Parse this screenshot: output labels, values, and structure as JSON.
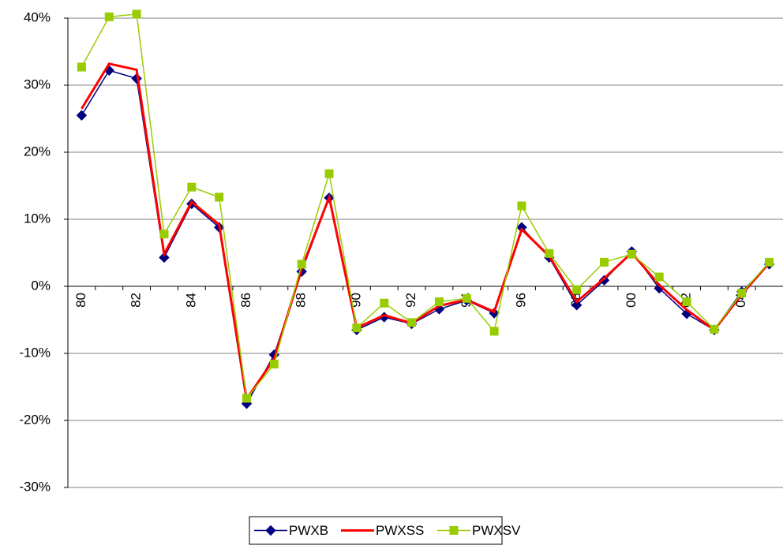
{
  "chart_data": {
    "type": "line",
    "categories": [
      "80",
      null,
      "82",
      null,
      "84",
      null,
      "86",
      null,
      "88",
      null,
      "90",
      null,
      "92",
      null,
      "94",
      null,
      "96",
      null,
      "98",
      null,
      "00",
      null,
      "02",
      null,
      "04",
      null
    ],
    "series": [
      {
        "name": "PWXB",
        "color": "#000080",
        "marker": "diamond",
        "line_width": 1.5,
        "values": [
          25.5,
          32.2,
          31,
          4.3,
          12.3,
          8.8,
          -17.5,
          -10.2,
          2.2,
          13.2,
          -6.5,
          -4.6,
          -5.6,
          -3.4,
          -2.1,
          -4,
          8.8,
          4.3,
          -2.8,
          0.9,
          5.2,
          -0.3,
          -4.1,
          -6.5,
          -0.8,
          3.3
        ]
      },
      {
        "name": "PWXSS",
        "color": "#ff0000",
        "marker": "none",
        "line_width": 3,
        "values": [
          26.5,
          33.2,
          32.3,
          4.8,
          12.6,
          9.2,
          -16.8,
          -10.8,
          2.6,
          13.3,
          -6.2,
          -4.3,
          -5.5,
          -2.9,
          -2,
          -3.8,
          8.5,
          4.5,
          -2.3,
          1.2,
          5,
          0.2,
          -3.5,
          -6.5,
          -1.2,
          3.5
        ]
      },
      {
        "name": "PWXSV",
        "color": "#99cc00",
        "marker": "square",
        "line_width": 1.5,
        "values": [
          32.7,
          40.2,
          40.6,
          7.8,
          14.8,
          13.3,
          -16.7,
          -11.6,
          3.3,
          16.8,
          -6.2,
          -2.5,
          -5.4,
          -2.3,
          -1.8,
          -6.7,
          12,
          4.9,
          -0.5,
          3.6,
          4.8,
          1.4,
          -2.3,
          -6.4,
          -1,
          3.6
        ]
      }
    ],
    "ylim": [
      -30,
      40
    ],
    "yticks": [
      {
        "value": -30,
        "label": "-30%"
      },
      {
        "value": -20,
        "label": "-20%"
      },
      {
        "value": -10,
        "label": "-10%"
      },
      {
        "value": 0,
        "label": "0%"
      },
      {
        "value": 10,
        "label": "10%"
      },
      {
        "value": 20,
        "label": "20%"
      },
      {
        "value": 30,
        "label": "30%"
      },
      {
        "value": 40,
        "label": "40%"
      }
    ],
    "grid": true,
    "legend": "bottom"
  }
}
